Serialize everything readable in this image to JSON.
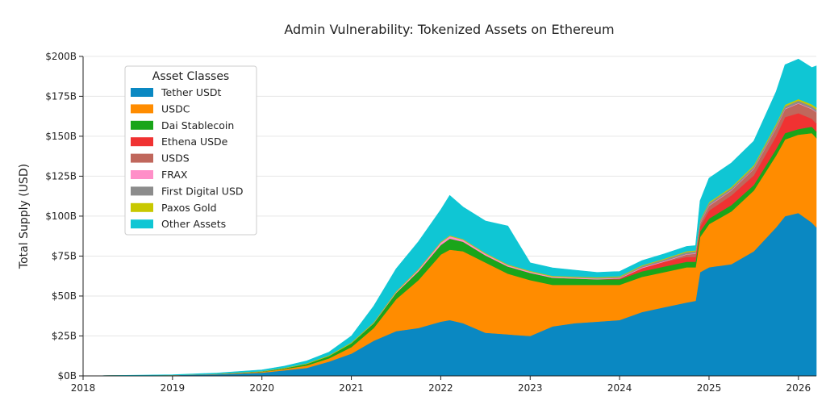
{
  "chart_data": {
    "type": "area",
    "stacked": true,
    "title": "Admin Vulnerability: Tokenized Assets on Ethereum",
    "xlabel": "",
    "ylabel": "Total Supply (USD)",
    "xlim": [
      2018.0,
      2026.2
    ],
    "ylim": [
      0,
      207
    ],
    "y_unit": "billions USD",
    "x_ticks": [
      2018,
      2019,
      2020,
      2021,
      2022,
      2023,
      2024,
      2025,
      2026
    ],
    "x_tick_labels": [
      "2018",
      "2019",
      "2020",
      "2021",
      "2022",
      "2023",
      "2024",
      "2025",
      "2026"
    ],
    "y_ticks": [
      0,
      25,
      50,
      75,
      100,
      125,
      150,
      175,
      200
    ],
    "y_tick_labels": [
      "$0B",
      "$25B",
      "$50B",
      "$75B",
      "$100B",
      "$125B",
      "$150B",
      "$175B",
      "$200B"
    ],
    "grid": "horizontal",
    "legend": {
      "title": "Asset Classes",
      "placement": "upper-left"
    },
    "x": [
      2018.0,
      2019.0,
      2019.5,
      2020.0,
      2020.25,
      2020.5,
      2020.75,
      2021.0,
      2021.25,
      2021.5,
      2021.75,
      2022.0,
      2022.1,
      2022.25,
      2022.5,
      2022.75,
      2023.0,
      2023.25,
      2023.5,
      2023.75,
      2024.0,
      2024.25,
      2024.5,
      2024.75,
      2024.85,
      2024.9,
      2025.0,
      2025.25,
      2025.5,
      2025.75,
      2025.85,
      2026.0,
      2026.15,
      2026.2
    ],
    "series": [
      {
        "name": "Tether USDt",
        "color": "#0a88c2",
        "values": [
          0,
          0.5,
          1,
          2,
          3.5,
          5,
          9,
          14,
          22,
          28,
          30,
          34,
          35,
          33,
          27,
          26,
          25,
          31,
          33,
          34,
          35,
          40,
          43,
          46,
          47,
          65,
          68,
          70,
          78,
          93,
          100,
          102,
          96,
          93
        ]
      },
      {
        "name": "USDC",
        "color": "#ff8c00",
        "values": [
          0,
          0,
          0.2,
          0.5,
          0.8,
          1.5,
          2,
          4,
          8,
          20,
          30,
          42,
          44,
          45,
          44,
          38,
          35,
          26,
          24,
          23,
          22,
          22,
          22,
          22,
          21,
          22,
          27,
          33,
          38,
          45,
          48,
          49,
          56,
          56
        ]
      },
      {
        "name": "Dai Stablecoin",
        "color": "#1aa51a",
        "values": [
          0,
          0,
          0,
          0.3,
          0.5,
          1,
          1.5,
          2.5,
          3,
          4,
          5.5,
          6,
          7,
          6,
          4.5,
          4.5,
          4.5,
          4.5,
          4,
          3.5,
          3.5,
          3.5,
          3.5,
          3.5,
          3.5,
          3.5,
          3.5,
          4,
          3.5,
          4,
          4,
          3.5,
          4,
          4
        ]
      },
      {
        "name": "Ethena USDe",
        "color": "#f03232",
        "values": [
          0,
          0,
          0,
          0,
          0,
          0,
          0,
          0,
          0,
          0,
          0,
          0,
          0,
          0,
          0,
          0,
          0,
          0,
          0,
          0,
          0.5,
          2,
          3,
          3,
          3,
          3,
          5,
          6,
          6,
          8,
          10,
          10,
          5,
          5
        ]
      },
      {
        "name": "USDS",
        "color": "#c0675c",
        "values": [
          0,
          0,
          0,
          0,
          0,
          0,
          0,
          0,
          0,
          0,
          0,
          0,
          0,
          0,
          0,
          0,
          0,
          0,
          0,
          0,
          0,
          0,
          0,
          1.5,
          2,
          2,
          3,
          3,
          4,
          5,
          5,
          6,
          6,
          7
        ]
      },
      {
        "name": "FRAX",
        "color": "#ff8fc8",
        "values": [
          0,
          0,
          0,
          0,
          0,
          0,
          0,
          0,
          0.2,
          0.5,
          1,
          1.5,
          1.5,
          1.2,
          1,
          0.8,
          0.8,
          0.6,
          0.5,
          0.5,
          0.4,
          0.4,
          0.4,
          0.3,
          0.3,
          0.3,
          0.3,
          0.3,
          0.3,
          0.3,
          0.3,
          0.3,
          0.3,
          0.3
        ]
      },
      {
        "name": "First Digital USD",
        "color": "#8c8c8c",
        "values": [
          0,
          0,
          0,
          0,
          0,
          0,
          0,
          0,
          0,
          0,
          0,
          0,
          0,
          0,
          0,
          0,
          0,
          0,
          0.2,
          0.3,
          0.5,
          0.8,
          1,
          1.2,
          1.2,
          1.2,
          1.3,
          1.2,
          1.2,
          1.5,
          1.5,
          1.5,
          1.5,
          1.5
        ]
      },
      {
        "name": "Paxos Gold",
        "color": "#c8c800",
        "values": [
          0,
          0,
          0.1,
          0.2,
          0.3,
          0.4,
          0.4,
          0.5,
          0.5,
          0.5,
          0.5,
          0.5,
          0.5,
          0.5,
          0.5,
          0.5,
          0.5,
          0.5,
          0.5,
          0.5,
          0.5,
          0.5,
          0.5,
          0.6,
          0.6,
          0.6,
          0.7,
          0.8,
          0.9,
          1.0,
          1.0,
          1.0,
          1.2,
          1.2
        ]
      },
      {
        "name": "Other Assets",
        "color": "#0fc6d4",
        "values": [
          0,
          0.2,
          0.5,
          0.8,
          1,
          1.5,
          2,
          4,
          10,
          14,
          17,
          20,
          25,
          20,
          20,
          24,
          5,
          5,
          4,
          3,
          3,
          3,
          3,
          3,
          3,
          12,
          15,
          15,
          15,
          20,
          25,
          25,
          23,
          26
        ]
      }
    ]
  }
}
